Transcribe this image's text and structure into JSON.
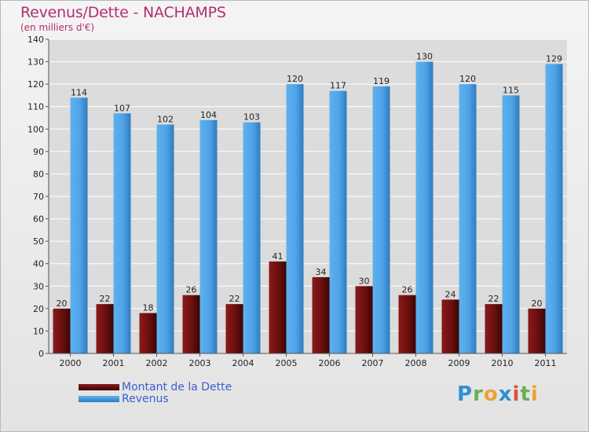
{
  "title": "Revenus/Dette - NACHAMPS",
  "subtitle": "(en milliers d'€)",
  "logo_text": "Proxiti",
  "chart_data": {
    "type": "bar",
    "categories": [
      "2000",
      "2001",
      "2002",
      "2003",
      "2004",
      "2005",
      "2006",
      "2007",
      "2008",
      "2009",
      "2010",
      "2011"
    ],
    "series": [
      {
        "name": "Montant de la Dette",
        "color": "#6b0f0f",
        "values": [
          20,
          22,
          18,
          26,
          22,
          41,
          34,
          30,
          26,
          24,
          22,
          20
        ]
      },
      {
        "name": "Revenus",
        "color": "#4fa3e6",
        "values": [
          114,
          107,
          102,
          104,
          103,
          120,
          117,
          119,
          130,
          120,
          115,
          129
        ]
      }
    ],
    "ylim": [
      0,
      140
    ],
    "yticks": [
      0,
      10,
      20,
      30,
      40,
      50,
      60,
      70,
      80,
      90,
      100,
      110,
      120,
      130,
      140
    ],
    "grid": true,
    "legend_position": "bottom-left",
    "xlabel": "",
    "ylabel": ""
  }
}
